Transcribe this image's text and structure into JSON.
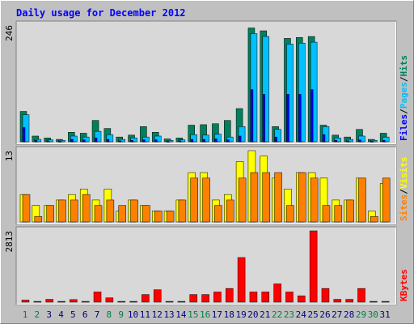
{
  "title": "Daily usage for December 2012",
  "legend_separator": "/",
  "chart_data": [
    {
      "type": "bar",
      "series": [
        {
          "name": "Hits",
          "color": "#00805c",
          "values": [
            64,
            12,
            8,
            5,
            20,
            18,
            45,
            28,
            10,
            14,
            32,
            20,
            6,
            8,
            35,
            36,
            38,
            45,
            70,
            240,
            234,
            32,
            218,
            220,
            222,
            35,
            14,
            10,
            26,
            5,
            18
          ]
        },
        {
          "name": "Files",
          "color": "#0000ff",
          "values": [
            30,
            3,
            2,
            1,
            5,
            4,
            8,
            5,
            2,
            3,
            4,
            4,
            1,
            2,
            5,
            5,
            6,
            4,
            12,
            110,
            100,
            10,
            100,
            100,
            110,
            15,
            3,
            2,
            4,
            1,
            3
          ]
        },
        {
          "name": "Pages",
          "color": "#00c0ff",
          "values": [
            57,
            5,
            4,
            3,
            12,
            10,
            22,
            15,
            5,
            8,
            10,
            12,
            3,
            4,
            15,
            14,
            16,
            10,
            32,
            228,
            222,
            26,
            206,
            208,
            210,
            32,
            8,
            5,
            12,
            3,
            10
          ]
        }
      ],
      "ylim": [
        0,
        246
      ],
      "yticks": [
        246
      ]
    },
    {
      "type": "bar",
      "series": [
        {
          "name": "Visits",
          "color": "#ffff00",
          "values": [
            5,
            3,
            3,
            4,
            5,
            6,
            4,
            6,
            2,
            4,
            3,
            2,
            2,
            4,
            9,
            9,
            4,
            5,
            11,
            13,
            12,
            8,
            6,
            9,
            9,
            8,
            4,
            4,
            8,
            2,
            7
          ]
        },
        {
          "name": "Sites",
          "color": "#ff8000",
          "values": [
            5,
            1,
            3,
            4,
            4,
            5,
            3,
            4,
            3,
            4,
            3,
            2,
            2,
            4,
            8,
            8,
            3,
            4,
            8,
            9,
            9,
            9,
            3,
            9,
            8,
            3,
            3,
            4,
            8,
            1,
            8
          ]
        }
      ],
      "ylim": [
        0,
        13
      ],
      "yticks": [
        13
      ]
    },
    {
      "type": "bar",
      "series": [
        {
          "name": "KBytes",
          "color": "#ff0000",
          "values": [
            80,
            30,
            110,
            30,
            100,
            30,
            400,
            170,
            30,
            30,
            300,
            490,
            30,
            30,
            300,
            300,
            400,
            540,
            1760,
            400,
            400,
            720,
            400,
            250,
            2813,
            540,
            110,
            110,
            540,
            30,
            30
          ]
        }
      ],
      "ylim": [
        0,
        2813
      ],
      "yticks": [
        2813
      ],
      "categories": [
        "1",
        "2",
        "3",
        "4",
        "5",
        "6",
        "7",
        "8",
        "9",
        "10",
        "11",
        "12",
        "13",
        "14",
        "15",
        "16",
        "17",
        "18",
        "19",
        "20",
        "21",
        "22",
        "23",
        "24",
        "25",
        "26",
        "27",
        "28",
        "29",
        "30",
        "31"
      ],
      "category_colors": [
        "#008040",
        "#008040",
        "#000080",
        "#000080",
        "#000080",
        "#000080",
        "#000080",
        "#008040",
        "#008040",
        "#000080",
        "#000080",
        "#000080",
        "#000080",
        "#000080",
        "#008040",
        "#008040",
        "#000080",
        "#000080",
        "#000080",
        "#000080",
        "#000080",
        "#008040",
        "#008040",
        "#000080",
        "#000080",
        "#000080",
        "#000080",
        "#000080",
        "#008040",
        "#008040",
        "#000080"
      ]
    }
  ]
}
